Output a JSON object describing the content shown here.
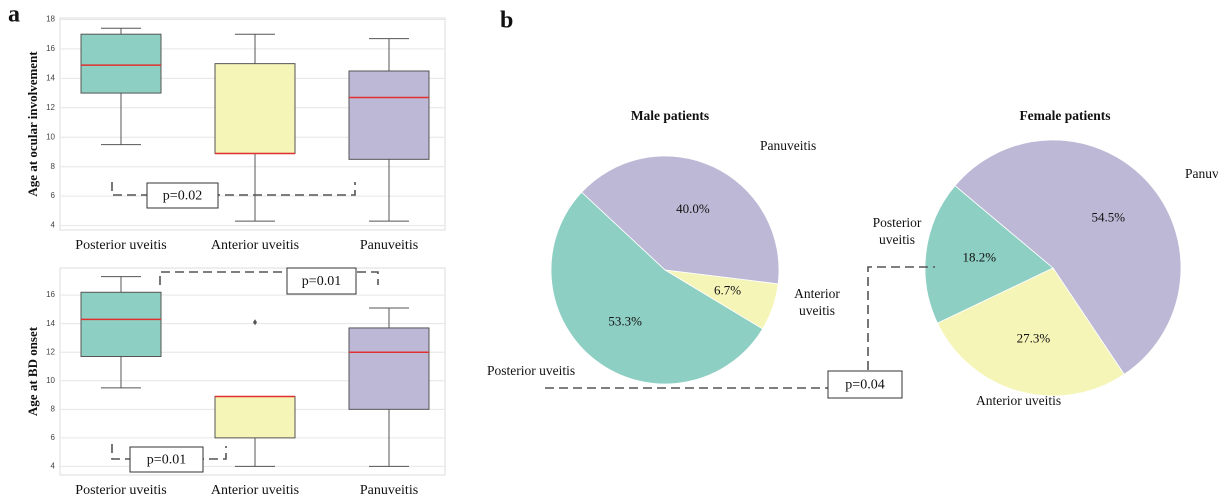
{
  "panel_labels": [
    "a",
    "b"
  ],
  "chart_data": [
    {
      "type": "box",
      "ylabel": "Age at ocular involvement",
      "categories": [
        "Posterior uveitis",
        "Anterior uveitis",
        "Panuveitis"
      ],
      "ylim": [
        3.7,
        18.1
      ],
      "yticks": [
        4,
        6,
        8,
        10,
        12,
        14,
        16,
        18
      ],
      "grid": true,
      "median_color": "#e03030",
      "boxes": [
        {
          "whislo": 9.5,
          "q1": 13,
          "med": 14.9,
          "q3": 17,
          "whishi": 17.4,
          "color": "#8ecfc3"
        },
        {
          "whislo": 4.3,
          "q1": 8.9,
          "med": 8.9,
          "q3": 15,
          "whishi": 17,
          "color": "#f5f5b8"
        },
        {
          "whislo": 4.3,
          "q1": 8.5,
          "med": 12.7,
          "q3": 14.5,
          "whishi": 16.7,
          "color": "#bcb8d6"
        }
      ],
      "annotations": [
        {
          "text": "p=0.02"
        }
      ]
    },
    {
      "type": "box",
      "ylabel": "Age at BD onset",
      "categories": [
        "Posterior uveitis",
        "Anterior uveitis",
        "Panuveitis"
      ],
      "ylim": [
        3.4,
        17.9
      ],
      "yticks": [
        4,
        6,
        8,
        10,
        12,
        14,
        16
      ],
      "grid": true,
      "median_color": "#e03030",
      "boxes": [
        {
          "whislo": 9.5,
          "q1": 11.7,
          "med": 14.3,
          "q3": 16.2,
          "whishi": 17.3,
          "color": "#8ecfc3"
        },
        {
          "whislo": 4,
          "q1": 6,
          "med": 8.9,
          "q3": 8.9,
          "whishi": 8.9,
          "color": "#f5f5b8",
          "fliers": [
            14.1
          ]
        },
        {
          "whislo": 4,
          "q1": 8,
          "med": 12,
          "q3": 13.7,
          "whishi": 15.1,
          "color": "#bcb8d6"
        }
      ],
      "annotations": [
        {
          "text": "p=0.01"
        },
        {
          "text": "p=0.01"
        }
      ]
    },
    {
      "type": "pie",
      "title": "Male patients",
      "categories": [
        "Panuveitis",
        "Anterior uveitis",
        "Posterior uveitis"
      ],
      "values": [
        40.0,
        6.7,
        53.3
      ],
      "value_labels": [
        "40.0%",
        "6.7%",
        "53.3%"
      ],
      "colors": [
        "#bcb8d6",
        "#f5f5b8",
        "#8ecfc3"
      ]
    },
    {
      "type": "pie",
      "title": "Female patients",
      "categories": [
        "Panuveitis",
        "Anterior uveitis",
        "Posterior uveitis"
      ],
      "values": [
        54.5,
        27.3,
        18.2
      ],
      "value_labels": [
        "54.5%",
        "27.3%",
        "18.2%"
      ],
      "colors": [
        "#bcb8d6",
        "#f5f5b8",
        "#8ecfc3"
      ]
    }
  ],
  "comparison_annotation": {
    "text": "p=0.04"
  }
}
